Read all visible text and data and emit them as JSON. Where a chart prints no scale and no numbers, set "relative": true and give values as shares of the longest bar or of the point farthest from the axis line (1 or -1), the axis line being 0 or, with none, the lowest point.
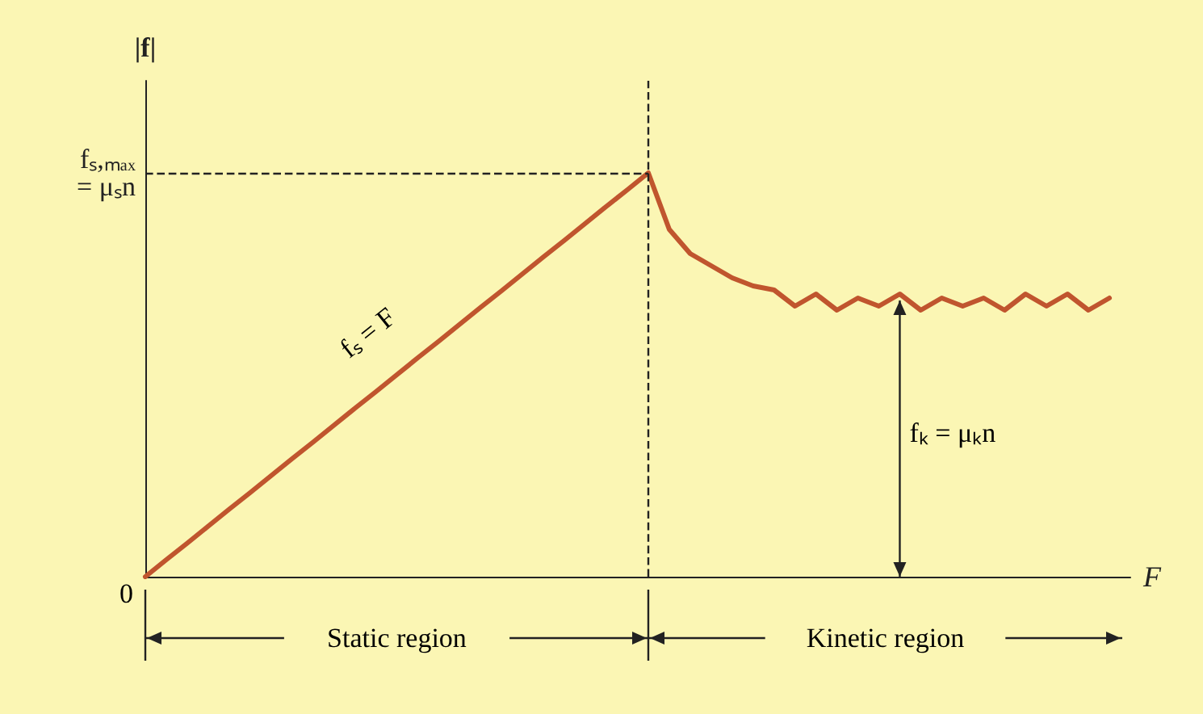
{
  "chart_data": {
    "type": "line",
    "relative": true,
    "xlabel": "F",
    "ylabel": "|f|",
    "categories": [
      null,
      null,
      null,
      null,
      null,
      null,
      null,
      null,
      null,
      null,
      null,
      null,
      null,
      null,
      null,
      null,
      null,
      null,
      null,
      null,
      null,
      null,
      null,
      null,
      null,
      null,
      null,
      null,
      null,
      null,
      null,
      null,
      null,
      null,
      null,
      null,
      null,
      null,
      null,
      null,
      null,
      null,
      null,
      null,
      null,
      null,
      null,
      null
    ],
    "series": [
      {
        "color": "#c0552e",
        "values": [
          0,
          0.042,
          0.083,
          0.125,
          0.167,
          0.208,
          0.25,
          0.292,
          0.333,
          0.375,
          0.417,
          0.458,
          0.5,
          0.542,
          0.583,
          0.625,
          0.667,
          0.708,
          0.75,
          0.792,
          0.833,
          0.875,
          0.917,
          0.958,
          1,
          0.86,
          0.8,
          0.77,
          0.74,
          0.72,
          0.71,
          0.67,
          0.7,
          0.66,
          0.69,
          0.67,
          0.7,
          0.66,
          0.69,
          0.67,
          0.69,
          0.66,
          0.7,
          0.67,
          0.7,
          0.66,
          0.69,
          null
        ]
      }
    ],
    "ref_lines": [
      {
        "axis": "y",
        "value": 1,
        "label": "fₛ,ₘₐₓ\n= μₛn",
        "line_style": "dashed"
      }
    ],
    "annotations": [
      "0",
      "fₛ = F",
      "fₖ = μₖn",
      "Static region",
      "Kinetic region"
    ],
    "grid": false,
    "marker": "none",
    "line_style": "solid"
  }
}
